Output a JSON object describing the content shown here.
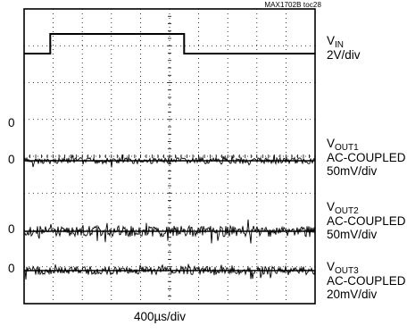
{
  "figure_tag": "MAX1702B toc28",
  "timebase_label": "400µs/div",
  "channels": [
    {
      "name": "V",
      "sub": "IN",
      "lines": [
        "2V/div"
      ]
    },
    {
      "name": "V",
      "sub": "OUT1",
      "lines": [
        "AC-COUPLED",
        "50mV/div"
      ]
    },
    {
      "name": "V",
      "sub": "OUT2",
      "lines": [
        "AC-COUPLED",
        "50mV/div"
      ]
    },
    {
      "name": "V",
      "sub": "OUT3",
      "lines": [
        "AC-COUPLED",
        "20mV/div"
      ]
    }
  ],
  "ground_markers": [
    "0",
    "0",
    "0",
    "0"
  ],
  "colors": {
    "trace": "#000000",
    "grid": "#000000",
    "background": "#ffffff"
  },
  "chart_data": {
    "type": "line",
    "title": "",
    "xlabel": "400µs/div",
    "x_divisions": 10,
    "y_divisions": 8,
    "grid": true,
    "series": [
      {
        "name": "VIN",
        "scale": "2V/div",
        "x_div": [
          0,
          0.9,
          0.9,
          5.5,
          5.5,
          10
        ],
        "y_div": [
          0,
          0,
          0.6,
          0.6,
          0,
          0
        ]
      },
      {
        "name": "VOUT1",
        "scale": "50mV/div",
        "coupling": "AC",
        "x_div": [
          0,
          10
        ],
        "y_div": [
          0,
          0
        ]
      },
      {
        "name": "VOUT2",
        "scale": "50mV/div",
        "coupling": "AC",
        "x_div": [
          0,
          10
        ],
        "y_div": [
          0,
          0
        ]
      },
      {
        "name": "VOUT3",
        "scale": "20mV/div",
        "coupling": "AC",
        "x_div": [
          0,
          10
        ],
        "y_div": [
          0,
          0
        ]
      }
    ]
  }
}
